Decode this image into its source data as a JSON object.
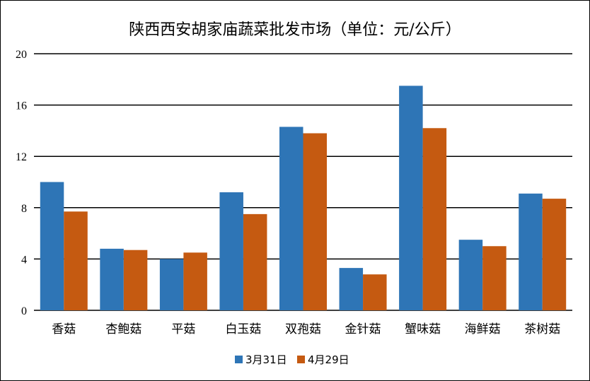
{
  "chart_data": {
    "type": "bar",
    "title": "陕西西安胡家庙蔬菜批发市场（单位：元/公斤）",
    "xlabel": "",
    "ylabel": "",
    "categories": [
      "香菇",
      "杏鲍菇",
      "平菇",
      "白玉菇",
      "双孢菇",
      "金针菇",
      "蟹味菇",
      "海鲜菇",
      "茶树菇"
    ],
    "series": [
      {
        "name": "3月31日",
        "color": "#2E75B6",
        "values": [
          10.0,
          4.8,
          4.0,
          9.2,
          14.3,
          3.3,
          17.5,
          5.5,
          9.1
        ]
      },
      {
        "name": "4月29日",
        "color": "#C55A11",
        "values": [
          7.7,
          4.7,
          4.5,
          7.5,
          13.8,
          2.8,
          14.2,
          5.0,
          8.7
        ]
      }
    ],
    "ylim": [
      0,
      20
    ],
    "yticks": [
      "0",
      "4",
      "8",
      "12",
      "16",
      "20"
    ],
    "grid": true,
    "legend_position": "bottom"
  }
}
